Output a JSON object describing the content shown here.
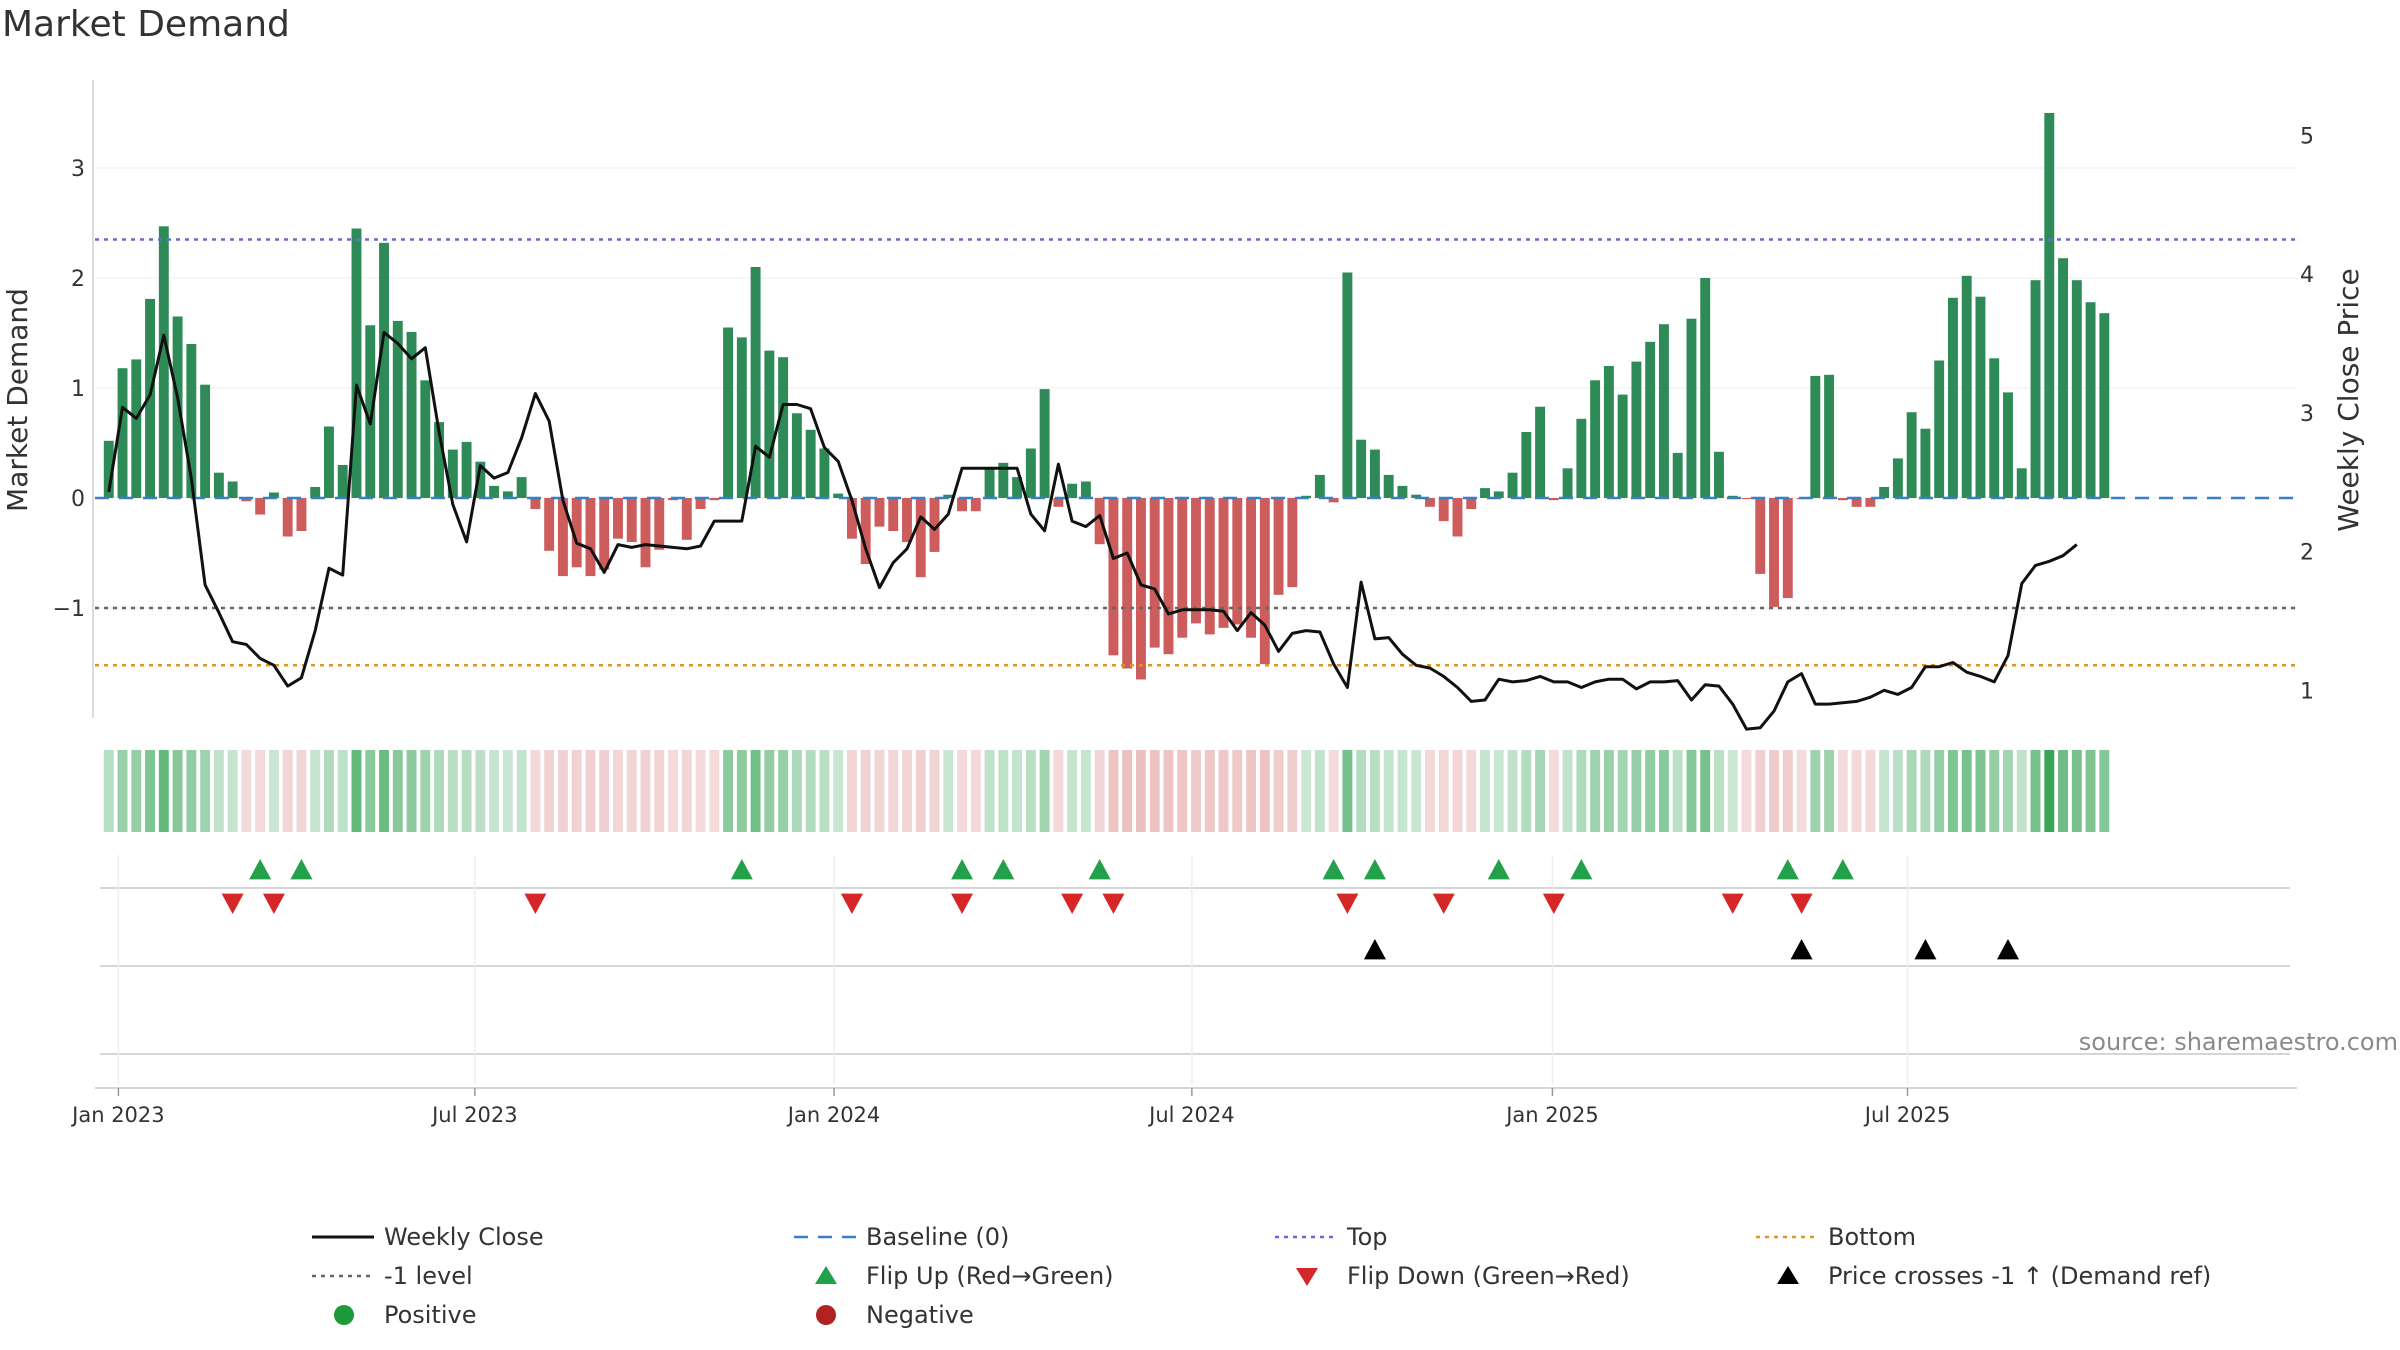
{
  "chart_data": {
    "type": "bar",
    "title": "Market Demand",
    "ylabel_left": "Market Demand",
    "ylabel_right": "Weekly Close Price",
    "ylim_left": [
      -2.0,
      3.8
    ],
    "ylim_right": [
      0.8,
      5.4
    ],
    "left_ticks": [
      -1,
      0,
      1,
      2,
      3
    ],
    "left_tick_labels": [
      "−1",
      "0",
      "1",
      "2",
      "3"
    ],
    "right_ticks": [
      1,
      2,
      3,
      4,
      5
    ],
    "right_tick_labels": [
      "1",
      "2",
      "3",
      "4",
      "5"
    ],
    "x_range_weeks": [
      -1,
      159
    ],
    "x_ticks": [
      {
        "week": 0.7,
        "label": "Jan 2023"
      },
      {
        "week": 26.6,
        "label": "Jul 2023"
      },
      {
        "week": 52.7,
        "label": "Jan 2024"
      },
      {
        "week": 78.7,
        "label": "Jul 2024"
      },
      {
        "week": 104.9,
        "label": "Jan 2025"
      },
      {
        "week": 130.7,
        "label": "Jul 2025"
      }
    ],
    "reference_lines": [
      {
        "name": "Top",
        "value": 2.35,
        "color": "#6a6ad6"
      },
      {
        "name": "-1 level",
        "value": -1.0,
        "color": "#666666"
      },
      {
        "name": "Bottom",
        "value": -1.52,
        "color": "#e0961e"
      },
      {
        "name": "Baseline (0)",
        "value": 0.0,
        "color": "#3a7fc4"
      }
    ],
    "demand": [
      0.52,
      1.18,
      1.26,
      1.81,
      2.47,
      1.65,
      1.4,
      1.03,
      0.23,
      0.15,
      -0.03,
      -0.15,
      0.05,
      -0.35,
      -0.3,
      0.1,
      0.65,
      0.3,
      2.45,
      1.57,
      2.32,
      1.61,
      1.51,
      1.07,
      0.69,
      0.44,
      0.51,
      0.33,
      0.11,
      0.06,
      0.19,
      -0.1,
      -0.48,
      -0.71,
      -0.63,
      -0.71,
      -0.65,
      -0.37,
      -0.4,
      -0.63,
      -0.47,
      -0.02,
      -0.38,
      -0.1,
      -0.02,
      1.55,
      1.46,
      2.1,
      1.34,
      1.28,
      0.77,
      0.62,
      0.45,
      0.04,
      -0.37,
      -0.6,
      -0.26,
      -0.3,
      -0.4,
      -0.72,
      -0.49,
      0.03,
      -0.12,
      -0.12,
      0.28,
      0.32,
      0.19,
      0.45,
      0.99,
      -0.08,
      0.13,
      0.15,
      -0.42,
      -1.43,
      -1.55,
      -1.65,
      -1.36,
      -1.42,
      -1.27,
      -1.14,
      -1.24,
      -1.18,
      -1.15,
      -1.27,
      -1.51,
      -0.88,
      -0.81,
      0.02,
      0.21,
      -0.04,
      2.05,
      0.53,
      0.44,
      0.21,
      0.11,
      0.03,
      -0.08,
      -0.21,
      -0.35,
      -0.1,
      0.09,
      0.06,
      0.23,
      0.6,
      0.83,
      -0.02,
      0.27,
      0.72,
      1.07,
      1.2,
      0.94,
      1.24,
      1.42,
      1.58,
      0.41,
      1.63,
      2.0,
      0.42,
      0.02,
      -0.01,
      -0.69,
      -0.99,
      -0.91,
      -0.01,
      1.11,
      1.12,
      -0.02,
      -0.08,
      -0.08,
      0.1,
      0.36,
      0.78,
      0.63,
      1.25,
      1.82,
      2.02,
      1.83,
      1.27,
      0.96,
      0.27,
      1.98,
      3.5,
      2.18,
      1.98,
      1.78,
      1.68
    ],
    "weekly_close": [
      2.43,
      3.04,
      2.96,
      3.13,
      3.56,
      3.11,
      2.53,
      1.76,
      1.56,
      1.35,
      1.33,
      1.23,
      1.18,
      1.03,
      1.09,
      1.43,
      1.88,
      1.83,
      3.2,
      2.92,
      3.58,
      3.5,
      3.39,
      3.47,
      2.86,
      2.34,
      2.07,
      2.62,
      2.53,
      2.57,
      2.82,
      3.14,
      2.94,
      2.37,
      2.06,
      2.02,
      1.85,
      2.05,
      2.03,
      2.05,
      2.04,
      2.03,
      2.02,
      2.04,
      2.22,
      2.22,
      2.22,
      2.76,
      2.68,
      3.06,
      3.06,
      3.03,
      2.75,
      2.65,
      2.37,
      2.02,
      1.74,
      1.92,
      2.02,
      2.25,
      2.16,
      2.27,
      2.6,
      2.6,
      2.6,
      2.6,
      2.6,
      2.27,
      2.15,
      2.63,
      2.22,
      2.18,
      2.26,
      1.95,
      1.99,
      1.76,
      1.73,
      1.55,
      1.58,
      1.58,
      1.58,
      1.57,
      1.43,
      1.56,
      1.47,
      1.28,
      1.41,
      1.43,
      1.42,
      1.19,
      1.02,
      1.78,
      1.37,
      1.38,
      1.26,
      1.18,
      1.16,
      1.1,
      1.02,
      0.92,
      0.93,
      1.08,
      1.06,
      1.07,
      1.1,
      1.06,
      1.06,
      1.02,
      1.06,
      1.08,
      1.08,
      1.01,
      1.06,
      1.06,
      1.07,
      0.93,
      1.04,
      1.03,
      0.9,
      0.72,
      0.73,
      0.85,
      1.06,
      1.12,
      0.9,
      0.9,
      0.91,
      0.92,
      0.95,
      1.0,
      0.97,
      1.02,
      1.17,
      1.17,
      1.2,
      1.13,
      1.1,
      1.06,
      1.25,
      1.77,
      1.9,
      1.93,
      1.97,
      2.05
    ],
    "close_scale_note": "weekly_close values above are in price units (right axis)",
    "flip_up_weeks": [
      11,
      14,
      46,
      62,
      65,
      72,
      89,
      92,
      101,
      107,
      122,
      126
    ],
    "flip_down_weeks": [
      9,
      12,
      31,
      54,
      62,
      70,
      73,
      90,
      97,
      105,
      118,
      123
    ],
    "price_cross_weeks": [
      92,
      123,
      132,
      138
    ],
    "legend": [
      {
        "label": "Weekly Close",
        "kind": "line",
        "color": "#111111"
      },
      {
        "label": "Baseline (0)",
        "kind": "dash",
        "color": "#3a7fc4"
      },
      {
        "label": "Top",
        "kind": "dot",
        "color": "#6a6ad6"
      },
      {
        "label": "Bottom",
        "kind": "dot",
        "color": "#e0961e"
      },
      {
        "label": "-1 level",
        "kind": "dot",
        "color": "#666666"
      },
      {
        "label": "Flip Up (Red→Green)",
        "kind": "tri-up",
        "color": "#22a04a"
      },
      {
        "label": "Flip Down (Green→Red)",
        "kind": "tri-down",
        "color": "#d62728"
      },
      {
        "label": "Price crosses -1 ↑ (Demand ref)",
        "kind": "tri-up",
        "color": "#000000"
      },
      {
        "label": "Positive",
        "kind": "circle",
        "color": "#1f9a3a"
      },
      {
        "label": "Negative",
        "kind": "circle",
        "color": "#b22222"
      }
    ],
    "source": "source: sharemaestro.com",
    "colors": {
      "positive_bar": "#2e8b57",
      "negative_bar": "#cd5c5c"
    }
  }
}
